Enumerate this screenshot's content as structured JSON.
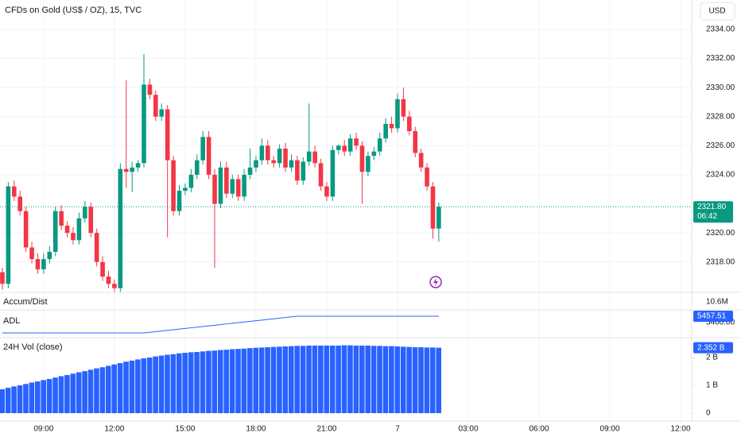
{
  "chart_data": [
    {
      "type": "candlestick",
      "title": "CFDs on Gold (US$ / OZ), 15, TVC",
      "currency": "USD",
      "x": [
        7.25,
        7.5,
        7.75,
        8,
        8.25,
        8.5,
        8.75,
        9,
        9.25,
        9.5,
        9.75,
        10,
        10.25,
        10.5,
        10.75,
        11,
        11.25,
        11.5,
        11.75,
        12,
        12.25,
        12.5,
        12.75,
        13,
        13.25,
        13.5,
        13.75,
        14,
        14.25,
        14.5,
        14.75,
        15,
        15.25,
        15.5,
        15.75,
        16,
        16.25,
        16.5,
        16.75,
        17,
        17.25,
        17.5,
        17.75,
        18,
        18.25,
        18.5,
        18.75,
        19,
        19.25,
        19.5,
        19.75,
        20,
        20.25,
        20.5,
        20.75,
        21,
        21.25,
        21.5,
        21.75,
        22,
        22.25,
        22.5,
        22.75,
        23,
        23.25,
        23.5,
        23.75,
        24,
        24.25,
        24.5,
        24.75,
        25,
        25.25,
        25.5,
        25.75
      ],
      "open": [
        2317.3,
        2316.5,
        2323.2,
        2322.5,
        2321.5,
        2319,
        2318.2,
        2317.5,
        2318.2,
        2318.7,
        2321.5,
        2320.5,
        2320,
        2319.5,
        2321,
        2321.8,
        2320,
        2318,
        2317,
        2316.5,
        2316.2,
        2324.4,
        2324.2,
        2324.5,
        2324.8,
        2330.2,
        2329.5,
        2328,
        2328.5,
        2325,
        2321.5,
        2322.9,
        2323.1,
        2324,
        2325,
        2326.6,
        2324,
        2322,
        2324.5,
        2322.7,
        2323.7,
        2322.5,
        2324,
        2324.5,
        2325,
        2326,
        2325,
        2324.8,
        2325.8,
        2324.5,
        2325,
        2323.6,
        2324.9,
        2325.6,
        2324.8,
        2323.2,
        2322.5,
        2325.7,
        2326,
        2325.6,
        2326.5,
        2326,
        2324.2,
        2325.3,
        2325.6,
        2326.5,
        2327.5,
        2327.2,
        2329.2,
        2328,
        2327,
        2325.5,
        2324.5,
        2323.2,
        2320.3
      ],
      "high": [
        2317.6,
        2323.5,
        2323.6,
        2322.9,
        2321.8,
        2319.4,
        2318.6,
        2318.6,
        2319.1,
        2321.8,
        2321.9,
        2320.8,
        2320.4,
        2321.4,
        2322.2,
        2322.1,
        2320.3,
        2318.4,
        2317.4,
        2316.8,
        2324.8,
        2330.5,
        2324.9,
        2325,
        2332.3,
        2330.6,
        2329.8,
        2328.9,
        2328.8,
        2325.3,
        2323.3,
        2323.4,
        2324.4,
        2325.4,
        2327,
        2327,
        2324.4,
        2324.9,
        2324.9,
        2324,
        2324,
        2324.4,
        2325.8,
        2325.3,
        2326.5,
        2326.4,
        2325.3,
        2326.1,
        2326.2,
        2325.4,
        2325.3,
        2325.2,
        2328.9,
        2326,
        2325.1,
        2323.5,
        2326,
        2326.1,
        2326.4,
        2326.8,
        2326.9,
        2326.3,
        2325.6,
        2325.9,
        2326.9,
        2327.9,
        2328,
        2329.6,
        2330,
        2328.4,
        2327.3,
        2325.8,
        2324.8,
        2323.5,
        2322.1
      ],
      "low": [
        2316.1,
        2316.2,
        2322.2,
        2321.2,
        2318.7,
        2317.9,
        2317.2,
        2317.2,
        2317.9,
        2318.4,
        2320.2,
        2319.7,
        2319.2,
        2319.2,
        2320.7,
        2319.7,
        2317.7,
        2316.7,
        2316.2,
        2315.9,
        2315.9,
        2323.1,
        2322.8,
        2324.2,
        2324.5,
        2329.2,
        2327.7,
        2327.7,
        2319.7,
        2321.2,
        2321.2,
        2322.6,
        2322.8,
        2323.7,
        2324.7,
        2323.7,
        2317.6,
        2321.7,
        2322.4,
        2322.4,
        2322.2,
        2322.2,
        2323.7,
        2324.2,
        2324.7,
        2324.7,
        2324.5,
        2324.5,
        2324.2,
        2324.2,
        2323.3,
        2323.3,
        2324.6,
        2324.5,
        2322.9,
        2322.2,
        2322.2,
        2325.4,
        2325.3,
        2325.3,
        2325.7,
        2322,
        2323.9,
        2325,
        2325.3,
        2326.2,
        2326.9,
        2326.9,
        2327.7,
        2326.7,
        2325.2,
        2324.2,
        2322.9,
        2319.6,
        2319.4
      ],
      "close": [
        2316.5,
        2323.2,
        2322.5,
        2321.5,
        2319,
        2318.2,
        2317.5,
        2318.2,
        2318.7,
        2321.5,
        2320.5,
        2320,
        2319.5,
        2321,
        2321.8,
        2320,
        2318,
        2317,
        2316.5,
        2316.2,
        2324.4,
        2324.2,
        2324.5,
        2324.8,
        2330.2,
        2329.5,
        2328,
        2328.5,
        2325,
        2321.5,
        2322.9,
        2323.1,
        2324,
        2325,
        2326.6,
        2324,
        2322,
        2324.5,
        2322.7,
        2323.7,
        2322.5,
        2324,
        2324.5,
        2325,
        2326,
        2325,
        2324.8,
        2325.8,
        2324.5,
        2325,
        2323.6,
        2324.9,
        2325.6,
        2324.8,
        2323.2,
        2322.5,
        2325.7,
        2326,
        2325.6,
        2326.5,
        2326,
        2324.2,
        2325.3,
        2325.6,
        2326.5,
        2327.5,
        2327.2,
        2329.2,
        2328,
        2327,
        2325.5,
        2324.5,
        2323.2,
        2320.3,
        2321.8
      ],
      "up_color": "#089981",
      "down_color": "#f23645",
      "last_label": "2321.80",
      "countdown": "06:42",
      "ylim": [
        2315.91,
        2336.02
      ],
      "yticks": [
        {
          "value": 2318,
          "label": "2318.00"
        },
        {
          "value": 2320,
          "label": "2320.00"
        },
        {
          "value": 2324,
          "label": "2324.00"
        },
        {
          "value": 2326,
          "label": "2326.00"
        },
        {
          "value": 2328,
          "label": "2328.00"
        },
        {
          "value": 2330,
          "label": "2330.00"
        },
        {
          "value": 2332,
          "label": "2332.00"
        },
        {
          "value": 2334,
          "label": "2334.00"
        }
      ],
      "grid": true
    },
    {
      "type": "line",
      "title": "Accum/Dist",
      "scale_label": "10.6M",
      "x": [
        7.25,
        7.5,
        7.75,
        8,
        8.25,
        8.5,
        8.75,
        9,
        9.25,
        9.5,
        9.75,
        10,
        10.25,
        10.5,
        10.75,
        11,
        11.25,
        11.5,
        11.75,
        12,
        12.25,
        12.5,
        12.75,
        13,
        13.25,
        13.5,
        13.75,
        14,
        14.25,
        14.5,
        14.75,
        15,
        15.25,
        15.5,
        15.75,
        16,
        16.25,
        16.5,
        16.75,
        17,
        17.25,
        17.5,
        17.75,
        18,
        18.25,
        18.5,
        18.75,
        19,
        19.25,
        19.5,
        19.75,
        20,
        20.25,
        20.5,
        20.75,
        21,
        21.25,
        21.5,
        21.75,
        22,
        22.25,
        22.5,
        22.75,
        23,
        23.25,
        23.5,
        23.75,
        24,
        24.25,
        24.5,
        24.75,
        25,
        25.25,
        25.5,
        25.75
      ],
      "series": [
        {
          "name": "ADL",
          "color": "#2962ff",
          "values": [
            5306,
            5306,
            5306,
            5306,
            5306,
            5306,
            5306,
            5306,
            5306,
            5306,
            5306,
            5306,
            5306,
            5306,
            5306,
            5306,
            5306,
            5306,
            5306,
            5306,
            5306,
            5306,
            5306,
            5306,
            5306,
            5311.8,
            5317.7,
            5323.5,
            5329.3,
            5335.1,
            5341,
            5346.8,
            5352.6,
            5358.4,
            5364.3,
            5370.1,
            5375.9,
            5381.8,
            5387.6,
            5393.4,
            5399.2,
            5405.1,
            5410.9,
            5416.7,
            5422.5,
            5428.4,
            5434.2,
            5440,
            5445.9,
            5451.7,
            5457.51,
            5457.51,
            5457.51,
            5457.51,
            5457.51,
            5457.51,
            5457.51,
            5457.51,
            5457.51,
            5457.51,
            5457.51,
            5457.51,
            5457.51,
            5457.51,
            5457.51,
            5457.51,
            5457.51,
            5457.51,
            5457.51,
            5457.51,
            5457.51,
            5457.51,
            5457.51,
            5457.51,
            5457.51
          ]
        }
      ],
      "ylim": [
        5263,
        5515
      ],
      "yticks": [
        {
          "value": 5400,
          "label": "5400.00"
        }
      ]
    },
    {
      "type": "bar",
      "title": "24H Vol (close)",
      "color": "#2962ff",
      "x": [
        7.25,
        7.5,
        7.75,
        8,
        8.25,
        8.5,
        8.75,
        9,
        9.25,
        9.5,
        9.75,
        10,
        10.25,
        10.5,
        10.75,
        11,
        11.25,
        11.5,
        11.75,
        12,
        12.25,
        12.5,
        12.75,
        13,
        13.25,
        13.5,
        13.75,
        14,
        14.25,
        14.5,
        14.75,
        15,
        15.25,
        15.5,
        15.75,
        16,
        16.25,
        16.5,
        16.75,
        17,
        17.25,
        17.5,
        17.75,
        18,
        18.25,
        18.5,
        18.75,
        19,
        19.25,
        19.5,
        19.75,
        20,
        20.25,
        20.5,
        20.75,
        21,
        21.25,
        21.5,
        21.75,
        22,
        22.25,
        22.5,
        22.75,
        23,
        23.25,
        23.5,
        23.75,
        24,
        24.25,
        24.5,
        24.75,
        25,
        25.25,
        25.5,
        25.75
      ],
      "values": [
        0.86,
        0.91,
        0.96,
        1.0,
        1.05,
        1.1,
        1.14,
        1.19,
        1.23,
        1.28,
        1.33,
        1.37,
        1.42,
        1.47,
        1.51,
        1.56,
        1.61,
        1.65,
        1.7,
        1.75,
        1.8,
        1.85,
        1.89,
        1.93,
        1.97,
        2.0,
        2.04,
        2.07,
        2.1,
        2.12,
        2.15,
        2.17,
        2.19,
        2.2,
        2.22,
        2.24,
        2.25,
        2.27,
        2.28,
        2.3,
        2.31,
        2.32,
        2.34,
        2.35,
        2.36,
        2.37,
        2.38,
        2.39,
        2.4,
        2.41,
        2.42,
        2.42,
        2.43,
        2.43,
        2.43,
        2.43,
        2.43,
        2.43,
        2.44,
        2.44,
        2.43,
        2.43,
        2.43,
        2.42,
        2.42,
        2.41,
        2.41,
        2.4,
        2.39,
        2.38,
        2.37,
        2.37,
        2.36,
        2.36,
        2.352
      ],
      "last_label": "2.352 B",
      "ylim": [
        -0.286,
        2.714
      ],
      "yticks": [
        0,
        {
          "value": 1,
          "label": "1 B"
        },
        {
          "value": 2,
          "label": "2 B"
        }
      ],
      "xlim": [
        7.15,
        36.47
      ],
      "xticks": [
        {
          "value": 9,
          "label": "09:00"
        },
        {
          "value": 12,
          "label": "12:00"
        },
        {
          "value": 15,
          "label": "15:00"
        },
        {
          "value": 18,
          "label": "18:00"
        },
        {
          "value": 21,
          "label": "21:00"
        },
        {
          "value": 24,
          "label": "7"
        },
        {
          "value": 27,
          "label": "03:00"
        },
        {
          "value": 30,
          "label": "06:00"
        },
        {
          "value": 33,
          "label": "09:00"
        },
        {
          "value": 36,
          "label": "12:00"
        }
      ]
    }
  ]
}
